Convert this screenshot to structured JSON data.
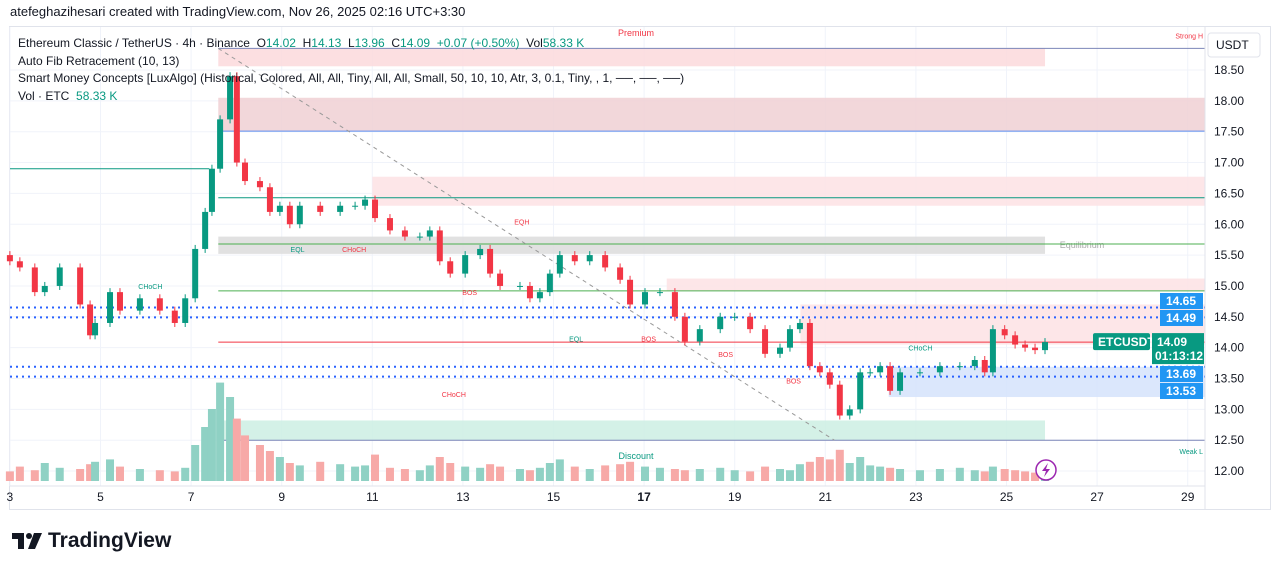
{
  "credit": "atefeghazihesari created with TradingView.com, Nov 26, 2025 02:16 UTC+3:30",
  "legend": {
    "symbol": "Ethereum Classic / TetherUS · 4h · Binance",
    "o_label": "O",
    "o": "14.02",
    "h_label": "H",
    "h": "14.13",
    "l_label": "L",
    "l": "13.96",
    "c_label": "C",
    "c": "14.09",
    "change": "+0.07 (+0.50%)",
    "vol_label": "Vol",
    "vol": "58.33 K",
    "ind1": "Auto Fib Retracement (10, 13)",
    "ind2": "Smart Money Concepts [LuxAlgo] (Historical, Colored, All, All, Tiny, All, All, Small, 50, 10, 10, Atr, 3, 0.1, Tiny, , 1, ──, ──, ──)",
    "ind3_label": "Vol · ETC",
    "ind3_value": "58.33 K"
  },
  "currency": "USDT",
  "logo_text": "TradingView",
  "colors": {
    "up": "#089981",
    "down": "#f23645",
    "vol_up": "#8fd1c4",
    "vol_down": "#f7a9a7",
    "blue_tag": "#2196f3",
    "price_tag": "#089981"
  },
  "chart_data": {
    "type": "candlestick",
    "symbol_tag": "ETCUSDT",
    "last_price": "14.09",
    "countdown": "01:13:12",
    "price_tags": [
      "14.65",
      "14.49",
      "13.69",
      "13.53"
    ],
    "ylim": [
      11.85,
      18.85
    ],
    "yticks": [
      "18.50",
      "18.00",
      "17.50",
      "17.00",
      "16.50",
      "16.00",
      "15.50",
      "15.00",
      "14.50",
      "14.00",
      "13.50",
      "13.00",
      "12.50",
      "12.00"
    ],
    "xticks": [
      "3",
      "5",
      "7",
      "9",
      "11",
      "13",
      "15",
      "17",
      "19",
      "21",
      "23",
      "25",
      "27",
      "29"
    ],
    "first_open": 15.5,
    "candles": [
      [
        3.0,
        15.4
      ],
      [
        3.22,
        15.3
      ],
      [
        3.55,
        14.9
      ],
      [
        3.77,
        15.0
      ],
      [
        4.1,
        15.3
      ],
      [
        4.55,
        14.7
      ],
      [
        4.77,
        14.2
      ],
      [
        4.88,
        14.4
      ],
      [
        5.21,
        14.9
      ],
      [
        5.43,
        14.6
      ],
      [
        5.87,
        14.8
      ],
      [
        6.31,
        14.6
      ],
      [
        6.64,
        14.4
      ],
      [
        6.87,
        14.8
      ],
      [
        7.09,
        15.6
      ],
      [
        7.31,
        16.2
      ],
      [
        7.46,
        16.9
      ],
      [
        7.64,
        17.7
      ],
      [
        7.86,
        18.4
      ],
      [
        8.01,
        17.0
      ],
      [
        8.19,
        16.7
      ],
      [
        8.52,
        16.6
      ],
      [
        8.74,
        16.2
      ],
      [
        8.96,
        16.3
      ],
      [
        9.18,
        16.0
      ],
      [
        9.4,
        16.3
      ],
      [
        9.85,
        16.2
      ],
      [
        10.29,
        16.3
      ],
      [
        10.62,
        16.3
      ],
      [
        10.84,
        16.4
      ],
      [
        11.06,
        16.1
      ],
      [
        11.39,
        15.9
      ],
      [
        11.72,
        15.8
      ],
      [
        12.05,
        15.8
      ],
      [
        12.27,
        15.9
      ],
      [
        12.49,
        15.4
      ],
      [
        12.72,
        15.2
      ],
      [
        13.05,
        15.5
      ],
      [
        13.38,
        15.6
      ],
      [
        13.6,
        15.2
      ],
      [
        13.82,
        15.0
      ],
      [
        14.26,
        15.0
      ],
      [
        14.48,
        14.8
      ],
      [
        14.7,
        14.9
      ],
      [
        14.92,
        15.2
      ],
      [
        15.14,
        15.5
      ],
      [
        15.47,
        15.4
      ],
      [
        15.8,
        15.5
      ],
      [
        16.14,
        15.3
      ],
      [
        16.47,
        15.1
      ],
      [
        16.69,
        14.7
      ],
      [
        17.02,
        14.9
      ],
      [
        17.35,
        14.9
      ],
      [
        17.68,
        14.5
      ],
      [
        17.9,
        14.1
      ],
      [
        18.23,
        14.3
      ],
      [
        18.68,
        14.5
      ],
      [
        19.0,
        14.5
      ],
      [
        19.34,
        14.3
      ],
      [
        19.67,
        13.9
      ],
      [
        20.0,
        14.0
      ],
      [
        20.22,
        14.3
      ],
      [
        20.44,
        14.4
      ],
      [
        20.66,
        13.7
      ],
      [
        20.88,
        13.6
      ],
      [
        21.1,
        13.4
      ],
      [
        21.32,
        12.9
      ],
      [
        21.54,
        13.0
      ],
      [
        21.77,
        13.6
      ],
      [
        21.99,
        13.6
      ],
      [
        22.21,
        13.7
      ],
      [
        22.43,
        13.3
      ],
      [
        22.65,
        13.6
      ],
      [
        23.09,
        13.6
      ],
      [
        23.53,
        13.7
      ],
      [
        23.97,
        13.7
      ],
      [
        24.3,
        13.8
      ],
      [
        24.52,
        13.6
      ],
      [
        24.7,
        14.3
      ],
      [
        24.96,
        14.2
      ],
      [
        25.19,
        14.05
      ],
      [
        25.41,
        14.0
      ],
      [
        25.63,
        13.96
      ],
      [
        25.85,
        14.09
      ]
    ],
    "volume_k": [
      80,
      120,
      90,
      150,
      110,
      100,
      140,
      160,
      180,
      120,
      100,
      90,
      80,
      110,
      300,
      450,
      600,
      820,
      700,
      520,
      380,
      300,
      250,
      200,
      150,
      130,
      160,
      140,
      120,
      130,
      220,
      110,
      100,
      90,
      130,
      200,
      150,
      120,
      110,
      140,
      120,
      100,
      90,
      110,
      150,
      180,
      120,
      100,
      130,
      140,
      160,
      120,
      110,
      100,
      90,
      100,
      110,
      90,
      80,
      120,
      100,
      90,
      140,
      160,
      200,
      180,
      260,
      150,
      200,
      130,
      120,
      110,
      100,
      90,
      100,
      110,
      90,
      80,
      120,
      100,
      90,
      80,
      70,
      58.33
    ],
    "zones": [
      {
        "name": "premium-zone",
        "label": "Premium",
        "top": 18.85,
        "bottom": 18.56,
        "from": 7.6,
        "to": 25.85,
        "color": "#fbd9dc"
      },
      {
        "name": "order-block-red-1",
        "top": 18.05,
        "bottom": 17.51,
        "from": 7.6,
        "to": 29.4,
        "color": "#f0d0d3"
      },
      {
        "name": "order-block-red-2",
        "top": 16.77,
        "bottom": 16.3,
        "from": 11.0,
        "to": 29.4,
        "color": "#fde2e4"
      },
      {
        "name": "equilibrium-zone",
        "label": "Equilibrium",
        "top": 15.8,
        "bottom": 15.52,
        "from": 7.6,
        "to": 25.85,
        "color": "#dcdcdc"
      },
      {
        "name": "order-block-red-3",
        "top": 15.12,
        "bottom": 14.92,
        "from": 17.5,
        "to": 29.4,
        "color": "#fde2e4"
      },
      {
        "name": "order-block-red-4",
        "top": 14.7,
        "bottom": 14.05,
        "from": 20.45,
        "to": 29.4,
        "color": "#fde2e4"
      },
      {
        "name": "order-block-blue",
        "top": 13.69,
        "bottom": 13.2,
        "from": 22.4,
        "to": 29.4,
        "color": "#d5e3fb"
      },
      {
        "name": "discount-zone",
        "label": "Discount",
        "top": 12.82,
        "bottom": 12.5,
        "from": 7.6,
        "to": 25.85,
        "color": "#cdeee3"
      }
    ],
    "levels": [
      {
        "name": "strong-high",
        "label": "Strong H",
        "price": 18.85,
        "from": 7.6,
        "to": 29.4,
        "color": "#7b86b8",
        "style": "solid"
      },
      {
        "name": "level-17.5",
        "price": 17.51,
        "from": 7.6,
        "to": 29.4,
        "color": "#5b8def",
        "style": "solid"
      },
      {
        "name": "level-16.9",
        "price": 16.9,
        "from": 3.0,
        "to": 7.4,
        "color": "#089981",
        "style": "solid"
      },
      {
        "name": "level-16.43",
        "price": 16.43,
        "from": 7.6,
        "to": 29.4,
        "color": "#089981",
        "style": "solid"
      },
      {
        "name": "level-15.68",
        "price": 15.68,
        "from": 7.6,
        "to": 29.4,
        "color": "#4caf50",
        "style": "solid"
      },
      {
        "name": "level-14.92",
        "price": 14.92,
        "from": 7.6,
        "to": 29.4,
        "color": "#4caf50",
        "style": "solid"
      },
      {
        "name": "level-14.65",
        "price": 14.65,
        "from": 3.0,
        "to": 29.4,
        "color": "#2962ff",
        "style": "dotted"
      },
      {
        "name": "level-14.49",
        "price": 14.49,
        "from": 3.0,
        "to": 29.4,
        "color": "#2962ff",
        "style": "dotted"
      },
      {
        "name": "level-14.09",
        "price": 14.09,
        "from": 7.6,
        "to": 29.4,
        "color": "#f23645",
        "style": "solid"
      },
      {
        "name": "level-13.69",
        "price": 13.69,
        "from": 3.0,
        "to": 29.4,
        "color": "#2962ff",
        "style": "dotted"
      },
      {
        "name": "level-13.53",
        "price": 13.53,
        "from": 3.0,
        "to": 29.4,
        "color": "#2962ff",
        "style": "dotted"
      },
      {
        "name": "weak-low",
        "label": "Weak L",
        "price": 12.5,
        "from": 7.6,
        "to": 29.4,
        "color": "#7b86b8",
        "style": "solid"
      }
    ],
    "fib_diagonal": {
      "from": [
        7.6,
        18.85
      ],
      "to": [
        21.2,
        12.5
      ]
    },
    "annotations": [
      {
        "text": "CHoCH",
        "day": 6.1,
        "price": 14.95,
        "color": "#089981"
      },
      {
        "text": "EQL",
        "day": 9.35,
        "price": 15.55,
        "color": "#089981"
      },
      {
        "text": "CHoCH",
        "day": 10.6,
        "price": 15.55,
        "color": "#f23645"
      },
      {
        "text": "EQH",
        "day": 14.3,
        "price": 16.0,
        "color": "#f23645"
      },
      {
        "text": "BOS",
        "day": 13.15,
        "price": 14.85,
        "color": "#f23645"
      },
      {
        "text": "EQL",
        "day": 15.5,
        "price": 14.1,
        "color": "#089981"
      },
      {
        "text": "BOS",
        "day": 17.1,
        "price": 14.1,
        "color": "#f23645"
      },
      {
        "text": "BOS",
        "day": 18.8,
        "price": 13.85,
        "color": "#f23645"
      },
      {
        "text": "BOS",
        "day": 20.3,
        "price": 13.42,
        "color": "#f23645"
      },
      {
        "text": "CHoCH",
        "day": 23.1,
        "price": 13.95,
        "color": "#089981"
      },
      {
        "text": "CHoCH",
        "day": 12.8,
        "price": 13.2,
        "color": "#f23645"
      }
    ]
  }
}
